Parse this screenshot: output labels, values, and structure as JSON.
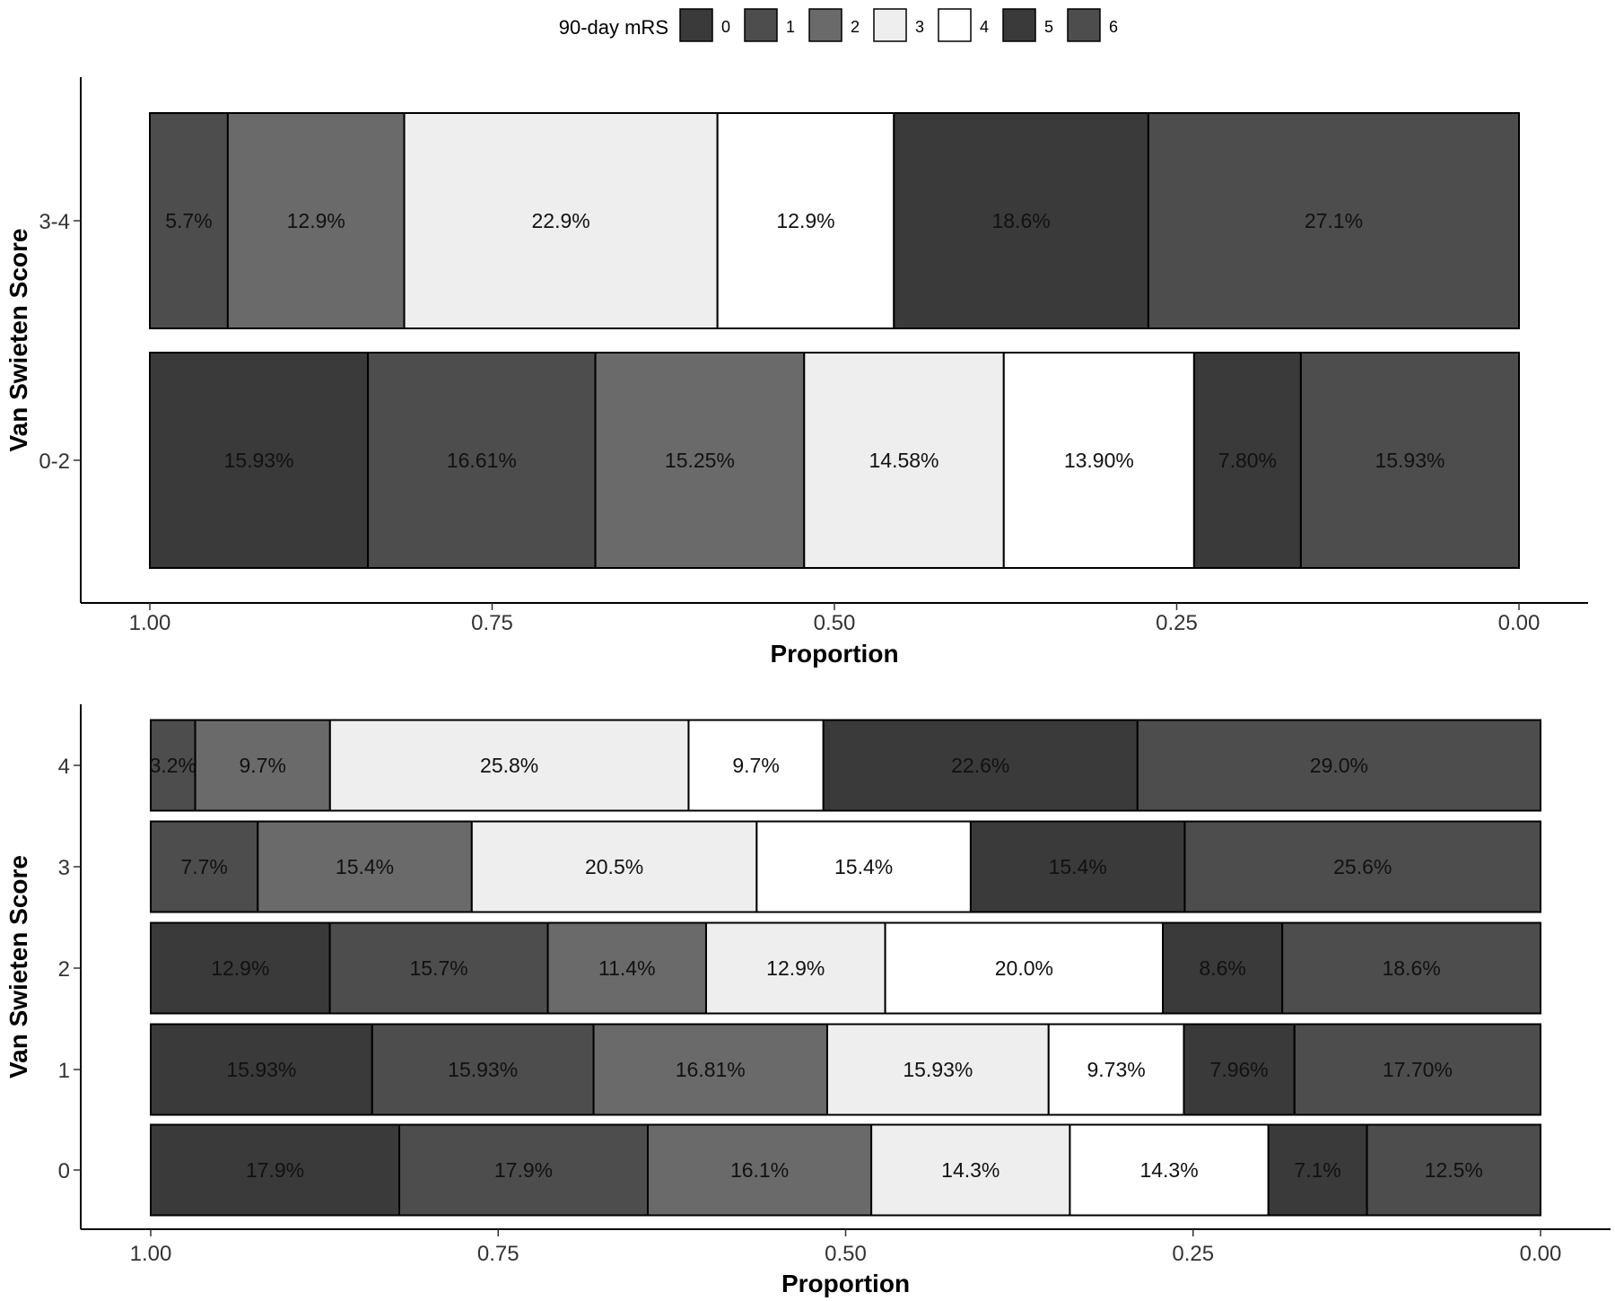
{
  "legend": {
    "title": "90-day mRS",
    "categories": [
      "0",
      "1",
      "2",
      "3",
      "4",
      "5",
      "6"
    ],
    "colors": [
      "#3a3a3a",
      "#4d4d4d",
      "#6a6a6a",
      "#eeeeee",
      "#ffffff",
      "#3a3a3a",
      "#4d4d4d"
    ]
  },
  "chart_data": [
    {
      "type": "bar",
      "stacked": "proportion",
      "orientation": "horizontal",
      "xlabel": "Proportion",
      "ylabel": "Van Swieten Score",
      "xlim": [
        1.0,
        0.0
      ],
      "x_ticks": [
        "1.00",
        "0.75",
        "0.50",
        "0.25",
        "0.00"
      ],
      "grid": false,
      "categories": [
        "3-4",
        "0-2"
      ],
      "segments": [
        {
          "category": "3-4",
          "values": [
            0,
            5.7,
            12.9,
            22.9,
            12.9,
            18.6,
            27.1
          ],
          "labels": [
            "",
            "5.7%",
            "12.9%",
            "22.9%",
            "12.9%",
            "18.6%",
            "27.1%"
          ]
        },
        {
          "category": "0-2",
          "values": [
            15.93,
            16.61,
            15.25,
            14.58,
            13.9,
            7.8,
            15.93
          ],
          "labels": [
            "15.93%",
            "16.61%",
            "15.25%",
            "14.58%",
            "13.90%",
            "7.80%",
            "15.93%"
          ]
        }
      ]
    },
    {
      "type": "bar",
      "stacked": "proportion",
      "orientation": "horizontal",
      "xlabel": "Proportion",
      "ylabel": "Van Swieten Score",
      "xlim": [
        1.0,
        0.0
      ],
      "x_ticks": [
        "1.00",
        "0.75",
        "0.50",
        "0.25",
        "0.00"
      ],
      "grid": false,
      "categories": [
        "4",
        "3",
        "2",
        "1",
        "0"
      ],
      "segments": [
        {
          "category": "4",
          "values": [
            0,
            3.2,
            9.7,
            25.8,
            9.7,
            22.6,
            29.0
          ],
          "labels": [
            "",
            "3.2%",
            "9.7%",
            "25.8%",
            "9.7%",
            "22.6%",
            "29.0%"
          ]
        },
        {
          "category": "3",
          "values": [
            0,
            7.7,
            15.4,
            20.5,
            15.4,
            15.4,
            25.6
          ],
          "labels": [
            "",
            "7.7%",
            "15.4%",
            "20.5%",
            "15.4%",
            "15.4%",
            "25.6%"
          ]
        },
        {
          "category": "2",
          "values": [
            12.9,
            15.7,
            11.4,
            12.9,
            20.0,
            8.6,
            18.6
          ],
          "labels": [
            "12.9%",
            "15.7%",
            "11.4%",
            "12.9%",
            "20.0%",
            "8.6%",
            "18.6%"
          ]
        },
        {
          "category": "1",
          "values": [
            15.93,
            15.93,
            16.81,
            15.93,
            9.73,
            7.96,
            17.7
          ],
          "labels": [
            "15.93%",
            "15.93%",
            "16.81%",
            "15.93%",
            "9.73%",
            "7.96%",
            "17.70%"
          ]
        },
        {
          "category": "0",
          "values": [
            17.9,
            17.9,
            16.1,
            14.3,
            14.3,
            7.1,
            12.5
          ],
          "labels": [
            "17.9%",
            "17.9%",
            "16.1%",
            "14.3%",
            "14.3%",
            "7.1%",
            "12.5%"
          ]
        }
      ]
    }
  ]
}
